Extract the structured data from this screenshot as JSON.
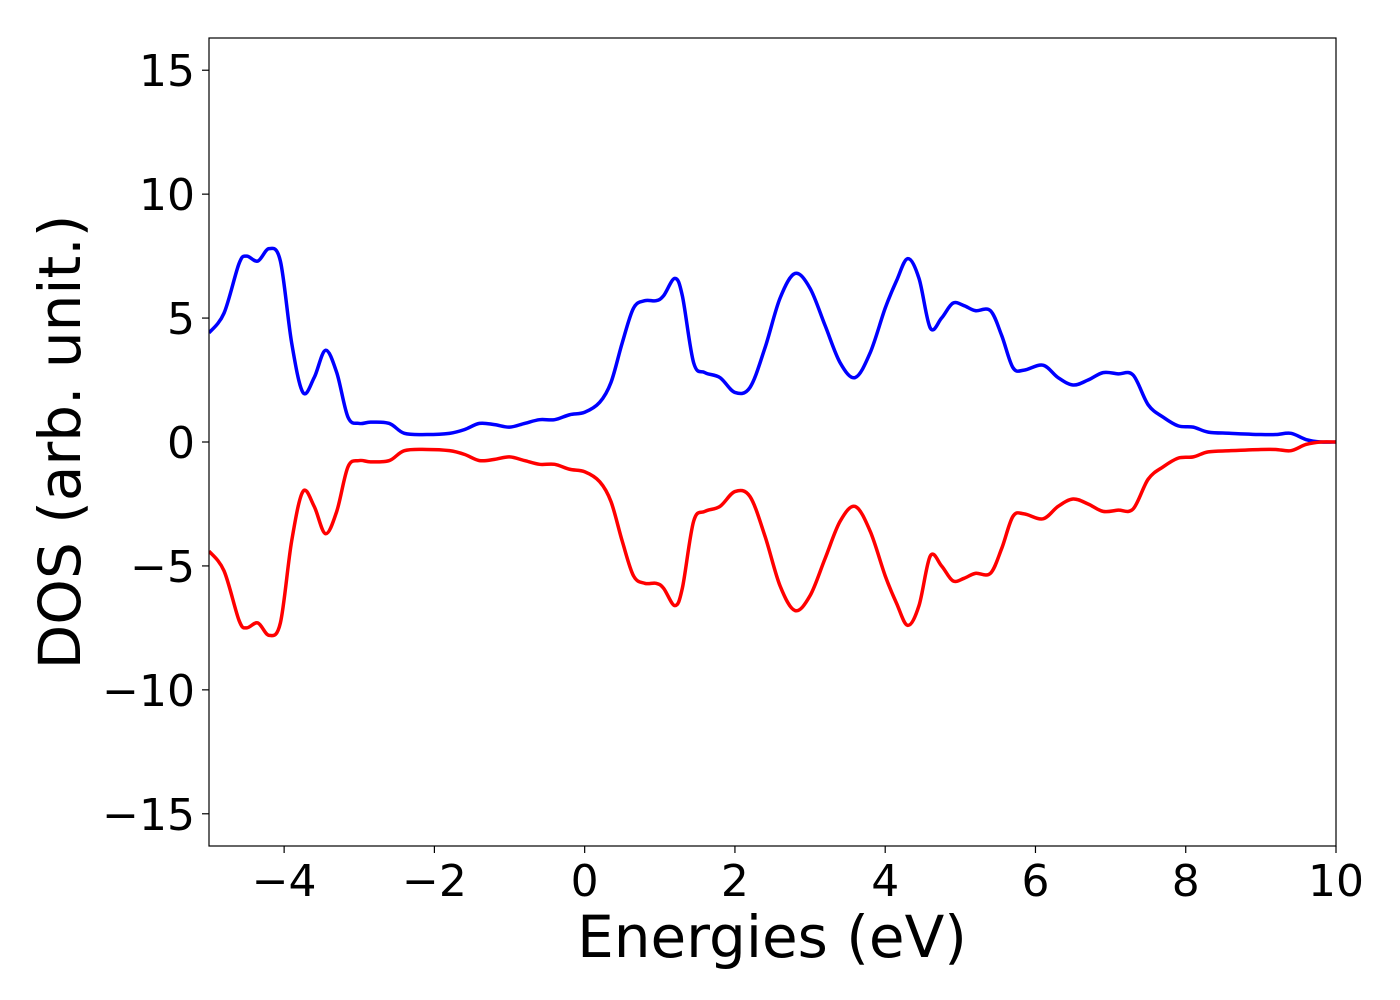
{
  "chart_data": {
    "type": "line",
    "title": "",
    "xlabel": "Energies (eV)",
    "ylabel": "DOS (arb. unit.)",
    "xlim": [
      -5,
      10
    ],
    "ylim": [
      -16.3,
      16.3
    ],
    "xticks": [
      -4,
      -2,
      0,
      2,
      4,
      6,
      8,
      10
    ],
    "xtick_labels": [
      "−4",
      "−2",
      "0",
      "2",
      "4",
      "6",
      "8",
      "10"
    ],
    "yticks": [
      15,
      10,
      5,
      0,
      -5,
      -10,
      -15
    ],
    "ytick_labels": [
      "15",
      "10",
      "5",
      "0",
      "−5",
      "−10",
      "−15"
    ],
    "grid": false,
    "legend": "none",
    "series": [
      {
        "color": "#0000ff",
        "x": [
          -5.0,
          -4.8,
          -4.6,
          -4.5,
          -4.35,
          -4.2,
          -4.05,
          -3.9,
          -3.75,
          -3.6,
          -3.45,
          -3.3,
          -3.15,
          -3.0,
          -2.85,
          -2.6,
          -2.4,
          -2.1,
          -1.8,
          -1.6,
          -1.4,
          -1.2,
          -1.0,
          -0.8,
          -0.6,
          -0.4,
          -0.2,
          0.0,
          0.2,
          0.35,
          0.5,
          0.65,
          0.8,
          0.95,
          1.05,
          1.2,
          1.3,
          1.45,
          1.6,
          1.8,
          2.0,
          2.2,
          2.4,
          2.6,
          2.8,
          3.0,
          3.2,
          3.4,
          3.6,
          3.8,
          4.0,
          4.15,
          4.3,
          4.45,
          4.6,
          4.75,
          4.9,
          5.05,
          5.2,
          5.4,
          5.55,
          5.7,
          5.85,
          6.1,
          6.3,
          6.5,
          6.7,
          6.9,
          7.1,
          7.3,
          7.5,
          7.7,
          7.9,
          8.1,
          8.3,
          8.6,
          9.0,
          9.2,
          9.4,
          9.6,
          9.8,
          10.0
        ],
        "y": [
          4.4,
          5.2,
          7.2,
          7.5,
          7.3,
          7.8,
          7.3,
          4.0,
          2.0,
          2.6,
          3.7,
          2.8,
          1.0,
          0.75,
          0.8,
          0.75,
          0.35,
          0.3,
          0.35,
          0.5,
          0.75,
          0.7,
          0.6,
          0.75,
          0.9,
          0.9,
          1.1,
          1.2,
          1.6,
          2.4,
          4.0,
          5.4,
          5.7,
          5.7,
          5.9,
          6.6,
          5.9,
          3.2,
          2.8,
          2.6,
          2.0,
          2.2,
          3.8,
          5.8,
          6.8,
          6.2,
          4.7,
          3.2,
          2.6,
          3.6,
          5.4,
          6.5,
          7.4,
          6.6,
          4.6,
          5.0,
          5.6,
          5.5,
          5.3,
          5.3,
          4.3,
          3.0,
          2.9,
          3.1,
          2.6,
          2.3,
          2.5,
          2.8,
          2.75,
          2.7,
          1.5,
          1.0,
          0.65,
          0.6,
          0.4,
          0.35,
          0.3,
          0.3,
          0.35,
          0.1,
          0.0,
          0.0
        ]
      },
      {
        "color": "#ff0000",
        "x": [
          -5.0,
          -4.8,
          -4.6,
          -4.5,
          -4.35,
          -4.2,
          -4.05,
          -3.9,
          -3.75,
          -3.6,
          -3.45,
          -3.3,
          -3.15,
          -3.0,
          -2.85,
          -2.6,
          -2.4,
          -2.1,
          -1.8,
          -1.6,
          -1.4,
          -1.2,
          -1.0,
          -0.8,
          -0.6,
          -0.4,
          -0.2,
          0.0,
          0.2,
          0.35,
          0.5,
          0.65,
          0.8,
          0.95,
          1.05,
          1.2,
          1.3,
          1.45,
          1.6,
          1.8,
          2.0,
          2.2,
          2.4,
          2.6,
          2.8,
          3.0,
          3.2,
          3.4,
          3.6,
          3.8,
          4.0,
          4.15,
          4.3,
          4.45,
          4.6,
          4.75,
          4.9,
          5.05,
          5.2,
          5.4,
          5.55,
          5.7,
          5.85,
          6.1,
          6.3,
          6.5,
          6.7,
          6.9,
          7.1,
          7.3,
          7.5,
          7.7,
          7.9,
          8.1,
          8.3,
          8.6,
          9.0,
          9.2,
          9.4,
          9.6,
          9.8,
          10.0
        ],
        "y": [
          -4.4,
          -5.2,
          -7.2,
          -7.5,
          -7.3,
          -7.8,
          -7.3,
          -4.0,
          -2.0,
          -2.6,
          -3.7,
          -2.8,
          -1.0,
          -0.75,
          -0.8,
          -0.75,
          -0.35,
          -0.3,
          -0.35,
          -0.5,
          -0.75,
          -0.7,
          -0.6,
          -0.75,
          -0.9,
          -0.9,
          -1.1,
          -1.2,
          -1.6,
          -2.4,
          -4.0,
          -5.4,
          -5.7,
          -5.7,
          -5.9,
          -6.6,
          -5.9,
          -3.2,
          -2.8,
          -2.6,
          -2.0,
          -2.2,
          -3.8,
          -5.8,
          -6.8,
          -6.2,
          -4.7,
          -3.2,
          -2.6,
          -3.6,
          -5.4,
          -6.5,
          -7.4,
          -6.6,
          -4.6,
          -5.0,
          -5.6,
          -5.5,
          -5.3,
          -5.3,
          -4.3,
          -3.0,
          -2.9,
          -3.1,
          -2.6,
          -2.3,
          -2.5,
          -2.8,
          -2.75,
          -2.7,
          -1.5,
          -1.0,
          -0.65,
          -0.6,
          -0.4,
          -0.35,
          -0.3,
          -0.3,
          -0.35,
          -0.1,
          0.0,
          0.0
        ]
      }
    ]
  }
}
